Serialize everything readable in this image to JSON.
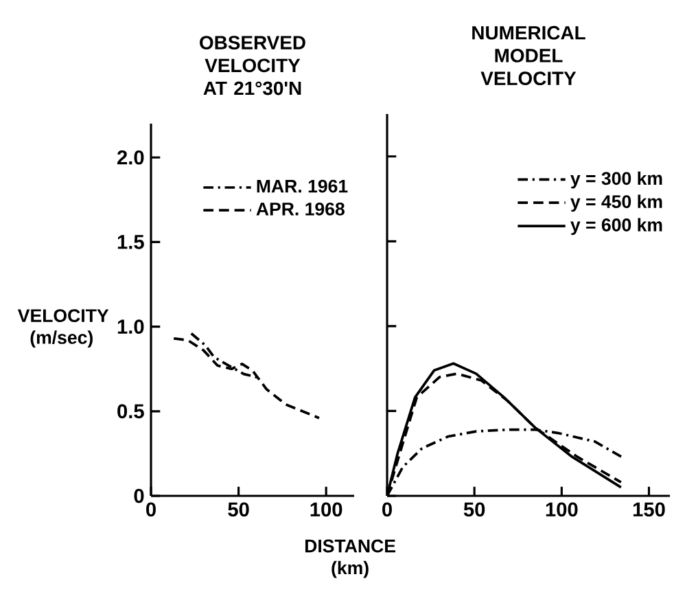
{
  "chart_data": [
    {
      "type": "line",
      "title": "OBSERVED VELOCITY AT 21°30'N",
      "xlabel": "DISTANCE (km)",
      "ylabel": "VELOCITY (m/sec)",
      "xlim": [
        0,
        116
      ],
      "ylim": [
        0,
        2.2
      ],
      "xticks": [
        0,
        50,
        100
      ],
      "yticks": [
        0,
        {
          "value": 0.5,
          "label": "0.5"
        },
        {
          "value": 1,
          "label": "1.0"
        },
        {
          "value": 1.5,
          "label": "1.5"
        },
        {
          "value": 2,
          "label": "2.0"
        }
      ],
      "legend": "top right",
      "grid": false,
      "marker": "none",
      "series": [
        {
          "name": "MAR. 1961",
          "color": "#000000",
          "line_style": "dashdot",
          "x": [
            23,
            31,
            36,
            46,
            53,
            61
          ],
          "values": [
            0.96,
            0.89,
            0.82,
            0.76,
            0.72,
            0.7
          ]
        },
        {
          "name": "APR. 1968",
          "color": "#000000",
          "line_style": "dashed",
          "x": [
            13,
            21,
            30,
            38,
            46,
            52,
            58,
            66,
            77,
            96
          ],
          "values": [
            0.93,
            0.92,
            0.86,
            0.77,
            0.75,
            0.78,
            0.74,
            0.63,
            0.54,
            0.46
          ]
        }
      ]
    },
    {
      "type": "line",
      "title": "NUMERICAL MODEL VELOCITY",
      "xlim": [
        0,
        162
      ],
      "ylim": [
        0,
        2.25
      ],
      "xticks": [
        0,
        50,
        100,
        150
      ],
      "yticks": [
        0,
        0.5,
        1,
        1.5,
        2
      ],
      "tick_labels": "x",
      "legend": "top right",
      "grid": false,
      "marker": "none",
      "series": [
        {
          "name": "y = 300 km",
          "color": "#000000",
          "line_style": "dashdot",
          "x": [
            0,
            9,
            20,
            35,
            51,
            69,
            85,
            98,
            119,
            136
          ],
          "values": [
            0,
            0.17,
            0.28,
            0.35,
            0.38,
            0.39,
            0.39,
            0.37,
            0.32,
            0.22
          ]
        },
        {
          "name": "y = 450 km",
          "color": "#000000",
          "line_style": "dashed",
          "x": [
            0,
            9,
            17,
            30,
            40,
            54,
            69,
            85,
            109,
            134
          ],
          "values": [
            0,
            0.31,
            0.58,
            0.7,
            0.72,
            0.68,
            0.56,
            0.4,
            0.23,
            0.08
          ]
        },
        {
          "name": "y = 600 km",
          "color": "#000000",
          "line_style": "solid",
          "x": [
            0,
            6,
            16,
            27,
            38,
            51,
            67,
            85,
            106,
            134
          ],
          "values": [
            0,
            0.25,
            0.58,
            0.74,
            0.78,
            0.72,
            0.58,
            0.4,
            0.23,
            0.05
          ]
        }
      ]
    }
  ]
}
